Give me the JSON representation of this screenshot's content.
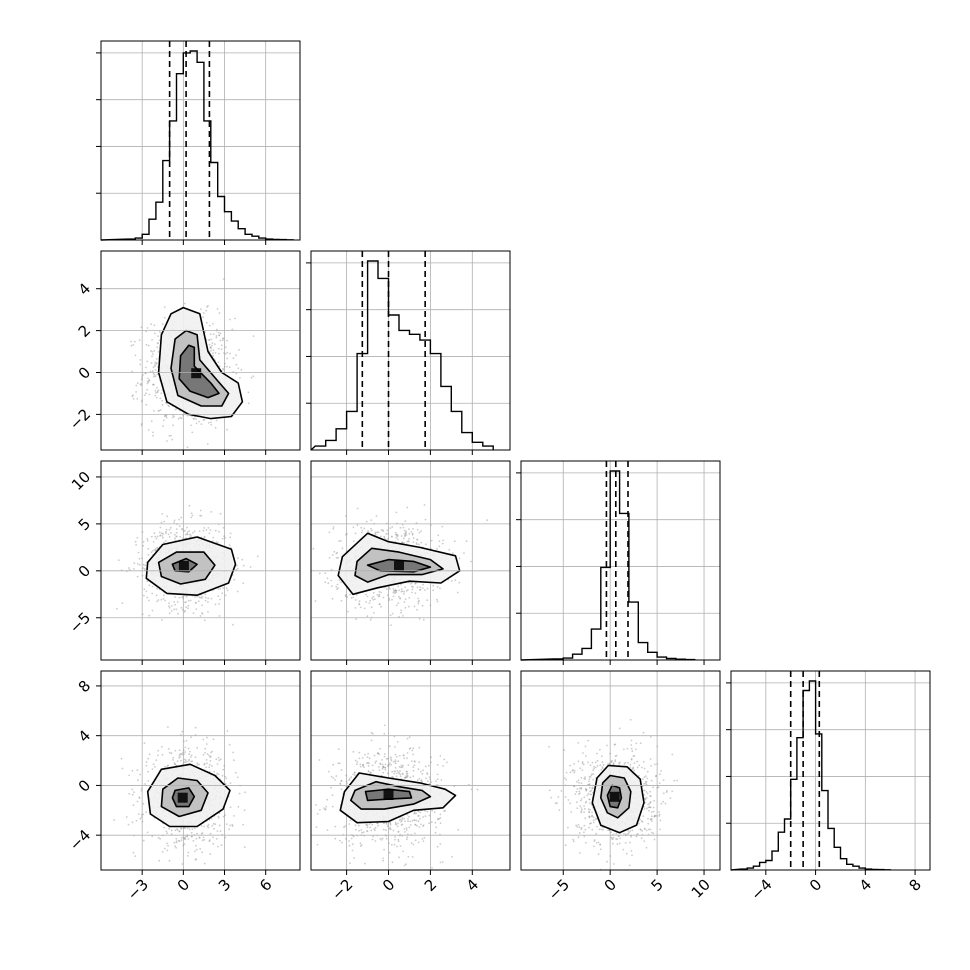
{
  "chart_data": {
    "type": "corner",
    "n_params": 4,
    "grid": true,
    "quantile_lines": "dashed",
    "ranges": [
      {
        "min": -6.0,
        "max": 8.5
      },
      {
        "min": -3.7,
        "max": 5.8
      },
      {
        "min": -9.5,
        "max": 11.7
      },
      {
        "min": -6.8,
        "max": 9.2
      }
    ],
    "ticks": [
      {
        "values": [
          -3,
          0,
          3,
          6
        ],
        "labels": [
          "−3",
          "0",
          "3",
          "6"
        ]
      },
      {
        "values": [
          -2,
          0,
          2,
          4
        ],
        "labels": [
          "−2",
          "0",
          "2",
          "4"
        ]
      },
      {
        "values": [
          -5,
          0,
          5,
          10
        ],
        "labels": [
          "−5",
          "0",
          "5",
          "10"
        ]
      },
      {
        "values": [
          -4,
          0,
          4,
          8
        ],
        "labels": [
          "−4",
          "0",
          "4",
          "8"
        ]
      }
    ],
    "quantiles": [
      [
        -1.0,
        0.2,
        1.9
      ],
      [
        -1.25,
        0.0,
        1.75
      ],
      [
        -0.4,
        0.6,
        1.9
      ],
      [
        -2.0,
        -1.0,
        0.3
      ]
    ],
    "histograms": [
      {
        "bin_edges": [
          -4,
          -3.5,
          -3,
          -2.5,
          -2,
          -1.5,
          -1,
          -0.5,
          0,
          0.5,
          1,
          1.5,
          2,
          2.5,
          3,
          3.5,
          4,
          4.5,
          5,
          5.5,
          6,
          6.5,
          7,
          7.5,
          8
        ],
        "counts": [
          0.005,
          0.01,
          0.03,
          0.11,
          0.2,
          0.42,
          0.63,
          0.88,
          0.99,
          1.0,
          0.94,
          0.63,
          0.41,
          0.23,
          0.15,
          0.1,
          0.06,
          0.03,
          0.02,
          0.01,
          0.005,
          0.003,
          0.002,
          0.001
        ]
      },
      {
        "bin_edges": [
          -3.5,
          -3.0,
          -2.5,
          -2.0,
          -1.5,
          -1.0,
          -0.5,
          0.0,
          0.5,
          1.0,
          1.5,
          2.0,
          2.5,
          3.0,
          3.5,
          4.0,
          4.5,
          5.0
        ],
        "counts": [
          0.02,
          0.05,
          0.11,
          0.2,
          0.5,
          0.98,
          0.89,
          0.7,
          0.62,
          0.6,
          0.57,
          0.5,
          0.33,
          0.2,
          0.09,
          0.04,
          0.02
        ]
      },
      {
        "bin_edges": [
          -6,
          -5,
          -4,
          -3,
          -2,
          -1,
          0,
          1,
          2,
          3,
          4,
          5,
          6,
          7,
          8,
          9
        ],
        "counts": [
          0.005,
          0.01,
          0.03,
          0.06,
          0.16,
          0.48,
          0.98,
          0.76,
          0.3,
          0.09,
          0.04,
          0.015,
          0.008,
          0.004,
          0.002
        ]
      },
      {
        "bin_edges": [
          -6,
          -5.5,
          -5,
          -4.5,
          -4,
          -3.5,
          -3,
          -2.5,
          -2,
          -1.5,
          -1,
          -0.5,
          0,
          0.5,
          1,
          1.5,
          2,
          2.5,
          3,
          3.5,
          4,
          4.5,
          5,
          5.5,
          6
        ],
        "counts": [
          0.005,
          0.01,
          0.02,
          0.04,
          0.05,
          0.1,
          0.2,
          0.27,
          0.48,
          0.7,
          0.95,
          1.0,
          0.72,
          0.42,
          0.22,
          0.12,
          0.06,
          0.03,
          0.02,
          0.01,
          0.005,
          0.003,
          0.002,
          0.001
        ]
      }
    ],
    "contour_panels": [
      {
        "x_param": 0,
        "y_param": 1,
        "contours": [
          [
            [
              0.0,
              3.1
            ],
            [
              1.2,
              2.8
            ],
            [
              1.8,
              1.0
            ],
            [
              2.8,
              0.0
            ],
            [
              4.0,
              -0.5
            ],
            [
              4.3,
              -1.4
            ],
            [
              3.5,
              -2.1
            ],
            [
              2.0,
              -2.2
            ],
            [
              0.4,
              -2.0
            ],
            [
              -1.2,
              -1.4
            ],
            [
              -1.8,
              0.0
            ],
            [
              -1.6,
              1.8
            ],
            [
              -0.9,
              2.8
            ]
          ],
          [
            [
              0.2,
              2.0
            ],
            [
              1.0,
              1.8
            ],
            [
              1.2,
              0.6
            ],
            [
              2.5,
              -0.4
            ],
            [
              3.3,
              -1.0
            ],
            [
              2.8,
              -1.6
            ],
            [
              1.3,
              -1.6
            ],
            [
              -0.4,
              -1.1
            ],
            [
              -0.9,
              0.2
            ],
            [
              -0.6,
              1.6
            ]
          ],
          [
            [
              0.4,
              1.3
            ],
            [
              0.8,
              1.2
            ],
            [
              0.8,
              0.3
            ],
            [
              2.0,
              -0.5
            ],
            [
              2.6,
              -1.0
            ],
            [
              1.8,
              -1.2
            ],
            [
              0.5,
              -0.9
            ],
            [
              -0.3,
              -0.3
            ],
            [
              -0.2,
              0.8
            ]
          ]
        ]
      },
      {
        "x_param": 0,
        "y_param": 2,
        "contours": [
          [
            [
              -2.6,
              0.9
            ],
            [
              -1.5,
              2.8
            ],
            [
              1.0,
              3.6
            ],
            [
              3.5,
              2.3
            ],
            [
              3.8,
              0.7
            ],
            [
              3.3,
              -1.3
            ],
            [
              1.0,
              -2.6
            ],
            [
              -1.2,
              -2.4
            ],
            [
              -2.7,
              -0.8
            ]
          ],
          [
            [
              -1.8,
              0.9
            ],
            [
              -0.5,
              2.0
            ],
            [
              1.5,
              2.0
            ],
            [
              2.3,
              0.6
            ],
            [
              1.6,
              -0.9
            ],
            [
              -0.2,
              -1.4
            ],
            [
              -1.6,
              -0.6
            ]
          ],
          [
            [
              -0.8,
              0.7
            ],
            [
              0.2,
              1.3
            ],
            [
              1.0,
              0.7
            ],
            [
              0.4,
              -0.1
            ],
            [
              -0.6,
              0.0
            ]
          ]
        ]
      },
      {
        "x_param": 1,
        "y_param": 2,
        "contours": [
          [
            [
              -2.2,
              1.5
            ],
            [
              -1.0,
              4.0
            ],
            [
              0.0,
              3.1
            ],
            [
              1.5,
              2.5
            ],
            [
              3.2,
              1.6
            ],
            [
              3.4,
              0.0
            ],
            [
              2.5,
              -1.3
            ],
            [
              1.0,
              -1.1
            ],
            [
              -0.5,
              -1.8
            ],
            [
              -1.7,
              -2.5
            ],
            [
              -2.4,
              -0.5
            ]
          ],
          [
            [
              -1.5,
              1.0
            ],
            [
              -0.8,
              2.4
            ],
            [
              0.5,
              2.0
            ],
            [
              2.0,
              1.2
            ],
            [
              2.6,
              0.2
            ],
            [
              1.6,
              -0.4
            ],
            [
              0.0,
              -0.4
            ],
            [
              -1.0,
              -1.2
            ],
            [
              -1.6,
              -0.5
            ]
          ],
          [
            [
              -1.0,
              0.6
            ],
            [
              0.0,
              1.2
            ],
            [
              1.2,
              1.0
            ],
            [
              2.0,
              0.4
            ],
            [
              1.2,
              -0.1
            ],
            [
              -0.4,
              0.0
            ]
          ]
        ]
      },
      {
        "x_param": 0,
        "y_param": 3,
        "contours": [
          [
            [
              -2.6,
              -0.5
            ],
            [
              -1.6,
              1.3
            ],
            [
              0.5,
              1.7
            ],
            [
              2.3,
              0.8
            ],
            [
              3.4,
              -0.4
            ],
            [
              2.9,
              -1.9
            ],
            [
              1.0,
              -3.3
            ],
            [
              -1.0,
              -3.3
            ],
            [
              -2.4,
              -2.3
            ]
          ],
          [
            [
              -1.5,
              -0.3
            ],
            [
              -0.4,
              0.6
            ],
            [
              1.0,
              0.4
            ],
            [
              1.8,
              -0.6
            ],
            [
              1.3,
              -2.0
            ],
            [
              -0.3,
              -2.5
            ],
            [
              -1.6,
              -1.7
            ]
          ],
          [
            [
              -0.6,
              -0.4
            ],
            [
              0.4,
              -0.2
            ],
            [
              0.8,
              -0.9
            ],
            [
              0.4,
              -1.7
            ],
            [
              -0.5,
              -1.7
            ],
            [
              -0.8,
              -1.0
            ]
          ]
        ]
      },
      {
        "x_param": 1,
        "y_param": 3,
        "contours": [
          [
            [
              -2.1,
              -0.5
            ],
            [
              -1.4,
              1.0
            ],
            [
              0.0,
              0.6
            ],
            [
              1.5,
              0.2
            ],
            [
              2.7,
              -0.3
            ],
            [
              3.2,
              -0.8
            ],
            [
              2.6,
              -1.8
            ],
            [
              1.2,
              -2.0
            ],
            [
              0.0,
              -2.9
            ],
            [
              -1.5,
              -3.0
            ],
            [
              -2.3,
              -2.0
            ]
          ],
          [
            [
              -1.6,
              -0.4
            ],
            [
              -0.6,
              0.3
            ],
            [
              0.5,
              -0.1
            ],
            [
              1.6,
              -0.4
            ],
            [
              2.0,
              -0.9
            ],
            [
              1.2,
              -1.5
            ],
            [
              -0.2,
              -1.9
            ],
            [
              -1.3,
              -1.9
            ],
            [
              -1.8,
              -1.2
            ]
          ],
          [
            [
              -1.1,
              -0.5
            ],
            [
              0.0,
              -0.3
            ],
            [
              1.0,
              -0.5
            ],
            [
              1.1,
              -1.0
            ],
            [
              0.0,
              -1.1
            ],
            [
              -1.0,
              -1.2
            ]
          ]
        ]
      },
      {
        "x_param": 2,
        "y_param": 3,
        "contours": [
          [
            [
              -0.2,
              1.6
            ],
            [
              1.8,
              1.5
            ],
            [
              3.2,
              0.5
            ],
            [
              3.6,
              -1.4
            ],
            [
              2.8,
              -3.2
            ],
            [
              1.0,
              -3.8
            ],
            [
              -1.0,
              -3.2
            ],
            [
              -1.9,
              -1.4
            ],
            [
              -1.4,
              0.6
            ]
          ],
          [
            [
              0.0,
              0.8
            ],
            [
              1.5,
              0.6
            ],
            [
              2.2,
              -0.5
            ],
            [
              2.0,
              -1.8
            ],
            [
              0.8,
              -2.6
            ],
            [
              -0.3,
              -2.2
            ],
            [
              -1.0,
              -1.0
            ],
            [
              -0.8,
              0.2
            ]
          ],
          [
            [
              0.2,
              0.0
            ],
            [
              1.0,
              -0.2
            ],
            [
              1.2,
              -1.0
            ],
            [
              0.8,
              -1.8
            ],
            [
              0.0,
              -1.7
            ],
            [
              -0.3,
              -0.8
            ]
          ]
        ]
      }
    ]
  }
}
